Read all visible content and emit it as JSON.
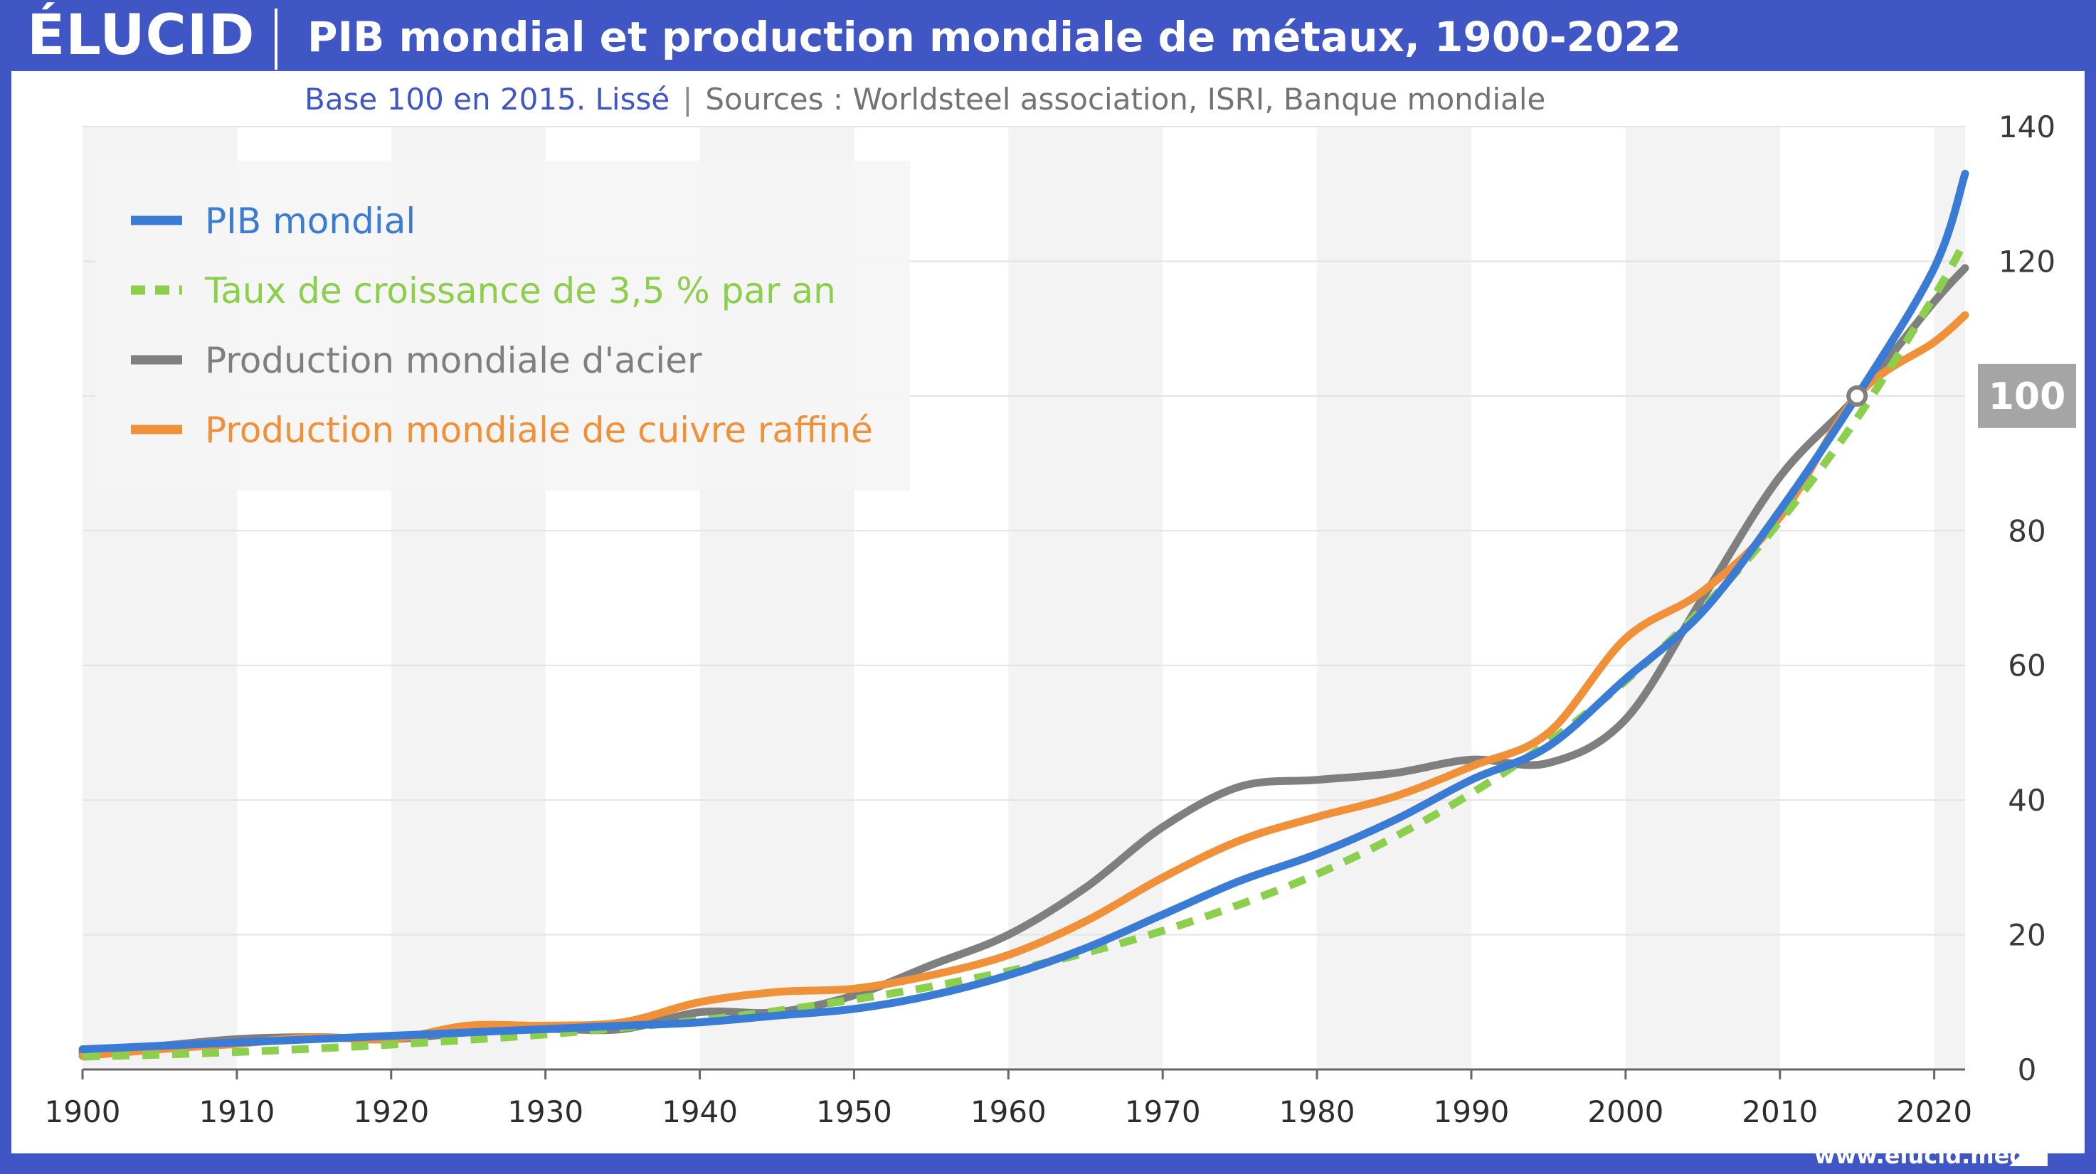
{
  "header": {
    "logo": "ÉLUCID",
    "title": "PIB mondial et production mondiale de métaux, 1900-2022"
  },
  "subtitle": {
    "base": "Base 100 en 2015. Lissé",
    "separator": "|",
    "sources": "Sources : Worldsteel association, ISRI, Banque mondiale"
  },
  "footer": {
    "url": "www.elucid.media"
  },
  "colors": {
    "brand": "#3f56c4",
    "pib": "#3a7bd5",
    "growth": "#8ccf4d",
    "steel": "#7f7f7f",
    "copper": "#f0913a",
    "ref_badge": "#a5a5a5"
  },
  "chart_data": {
    "type": "line",
    "title": "PIB mondial et production mondiale de métaux, 1900-2022",
    "xlabel": "",
    "ylabel": "",
    "xlim": [
      1900,
      2022
    ],
    "ylim": [
      0,
      140
    ],
    "xticks": [
      1900,
      1910,
      1920,
      1930,
      1940,
      1950,
      1960,
      1970,
      1980,
      1990,
      2000,
      2010,
      2020
    ],
    "yticks": [
      0,
      20,
      40,
      60,
      80,
      100,
      120,
      140
    ],
    "grid": true,
    "legend_position": "top-left",
    "reference": {
      "x": 2015,
      "y": 100,
      "label": "100"
    },
    "series": [
      {
        "name": "PIB mondial",
        "style": "solid",
        "color": "#3a7bd5",
        "x": [
          1900,
          1905,
          1910,
          1915,
          1920,
          1925,
          1930,
          1935,
          1940,
          1945,
          1950,
          1955,
          1960,
          1965,
          1970,
          1975,
          1980,
          1985,
          1990,
          1995,
          2000,
          2005,
          2010,
          2015,
          2020,
          2022
        ],
        "y": [
          3,
          3.5,
          4,
          4.5,
          5,
          5.5,
          6,
          6.5,
          7,
          8,
          9,
          11,
          14,
          18,
          23,
          28,
          32,
          37,
          43,
          48,
          58,
          68,
          83,
          100,
          119,
          133
        ]
      },
      {
        "name": "Taux de croissance de 3,5 % par an",
        "style": "dashed",
        "color": "#8ccf4d",
        "x": [
          1900,
          1905,
          1910,
          1915,
          1920,
          1925,
          1930,
          1935,
          1940,
          1945,
          1950,
          1955,
          1960,
          1965,
          1970,
          1975,
          1980,
          1985,
          1990,
          1995,
          2000,
          2005,
          2010,
          2015,
          2020,
          2022
        ],
        "y": [
          1.9,
          2.2,
          2.6,
          3.1,
          3.7,
          4.4,
          5.2,
          6.2,
          7.3,
          8.7,
          10.4,
          12.3,
          14.6,
          17.3,
          20.6,
          24.5,
          29,
          34.5,
          41,
          48.6,
          57.7,
          68.5,
          81.4,
          96.7,
          114.8,
          123
        ]
      },
      {
        "name": "Production mondiale d'acier",
        "style": "solid",
        "color": "#7f7f7f",
        "x": [
          1900,
          1905,
          1910,
          1915,
          1920,
          1925,
          1930,
          1935,
          1940,
          1945,
          1950,
          1955,
          1960,
          1965,
          1970,
          1975,
          1980,
          1985,
          1990,
          1995,
          2000,
          2005,
          2010,
          2015,
          2020,
          2022
        ],
        "y": [
          2.5,
          3.5,
          4.5,
          4.8,
          4.5,
          5.5,
          6,
          6,
          8.5,
          8.5,
          11,
          15.5,
          20,
          27,
          36,
          42,
          43,
          44,
          46,
          45.5,
          52,
          70,
          88,
          100,
          114,
          119
        ]
      },
      {
        "name": "Production mondiale de cuivre raffiné",
        "style": "solid",
        "color": "#f0913a",
        "x": [
          1900,
          1905,
          1910,
          1915,
          1920,
          1925,
          1930,
          1935,
          1940,
          1945,
          1950,
          1955,
          1960,
          1965,
          1970,
          1975,
          1980,
          1985,
          1990,
          1995,
          2000,
          2005,
          2010,
          2015,
          2020,
          2022
        ],
        "y": [
          2,
          3,
          3.8,
          4.8,
          4.5,
          6.5,
          6.5,
          7,
          10,
          11.5,
          12,
          14,
          17,
          22,
          28.5,
          34,
          37.5,
          40.5,
          45,
          50,
          64,
          71,
          82,
          100,
          108,
          112
        ]
      }
    ]
  }
}
